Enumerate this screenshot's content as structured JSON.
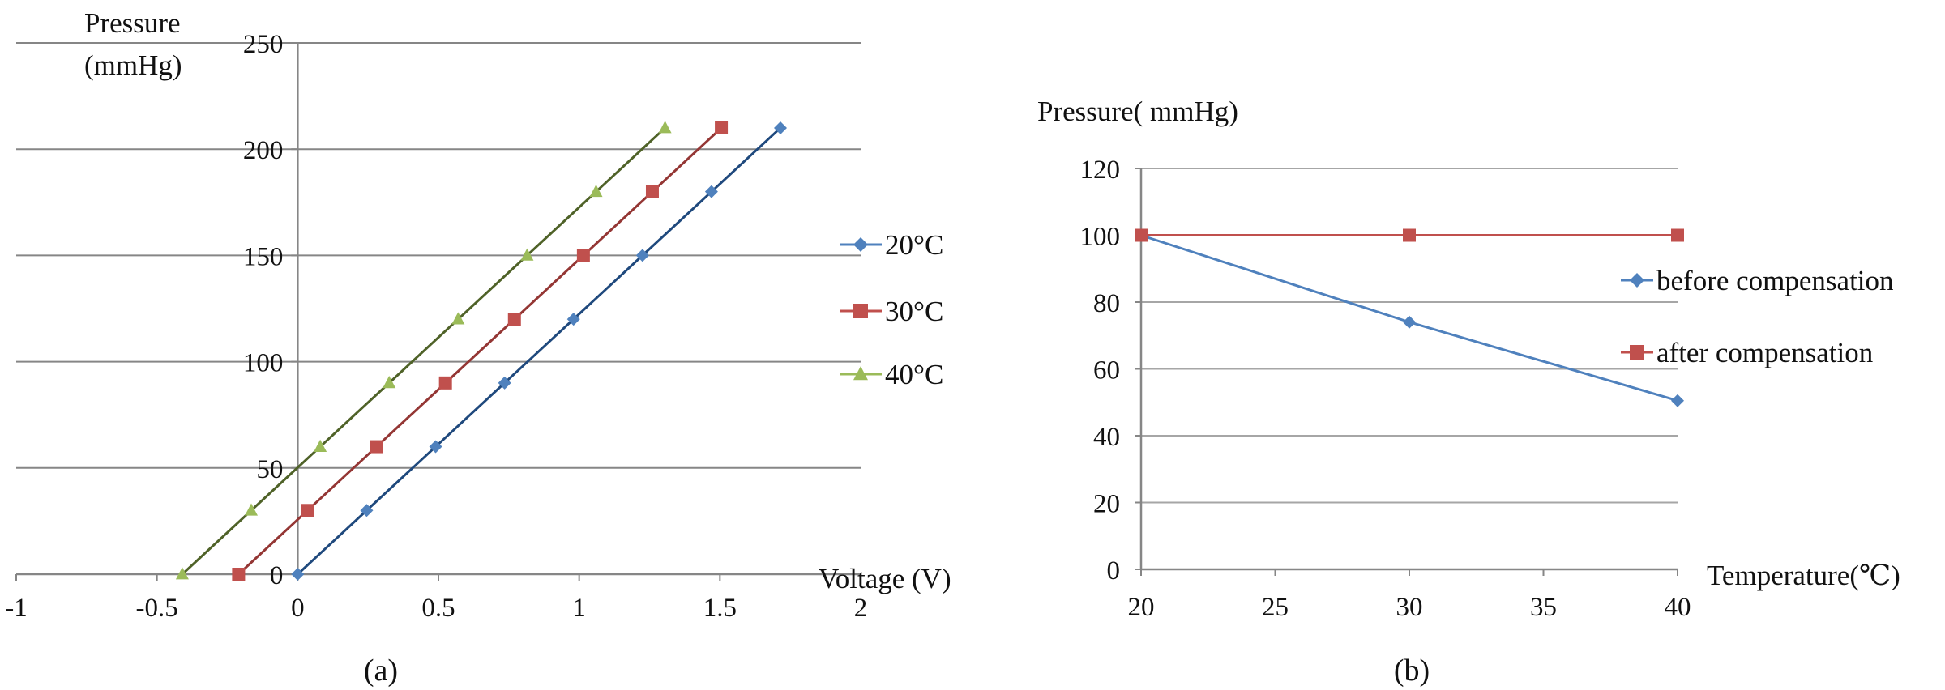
{
  "chart_data": [
    {
      "panel": "(a)",
      "type": "scatter",
      "title": "",
      "xlabel": "Voltage (V)",
      "ylabel_lines": [
        "Pressure",
        "(mmHg)"
      ],
      "xlim": [
        -1,
        2
      ],
      "ylim": [
        0,
        250
      ],
      "xticks": [
        -1,
        -0.5,
        0,
        0.5,
        1,
        1.5,
        2
      ],
      "xtick_labels": [
        "-1",
        "-0.5",
        "0",
        "0.5",
        "1",
        "1.5",
        "2"
      ],
      "yticks": [
        0,
        50,
        100,
        150,
        200,
        250
      ],
      "ytick_labels": [
        "0",
        "50",
        "100",
        "150",
        "200",
        "250"
      ],
      "grid": "horizontal",
      "legend_position": "right",
      "series": [
        {
          "name": "20°C",
          "color": "#4f81bd",
          "line_color": "#1f497d",
          "marker": "diamond",
          "x": [
            0,
            0.245,
            0.49,
            0.735,
            0.98,
            1.225,
            1.47,
            1.715
          ],
          "y": [
            0,
            30,
            60,
            90,
            120,
            150,
            180,
            210
          ]
        },
        {
          "name": "30°C",
          "color": "#c0504d",
          "line_color": "#943634",
          "marker": "square",
          "x": [
            -0.21,
            0.035,
            0.28,
            0.525,
            0.77,
            1.015,
            1.26,
            1.505
          ],
          "y": [
            0,
            30,
            60,
            90,
            120,
            150,
            180,
            210
          ]
        },
        {
          "name": "40°C",
          "color": "#9bbb59",
          "line_color": "#4f6228",
          "marker": "triangle",
          "x": [
            -0.41,
            -0.165,
            0.08,
            0.325,
            0.57,
            0.815,
            1.06,
            1.305
          ],
          "y": [
            0,
            30,
            60,
            90,
            120,
            150,
            180,
            210
          ]
        }
      ]
    },
    {
      "panel": "(b)",
      "type": "line",
      "title": "",
      "xlabel": "Temperature(℃)",
      "ylabel": "Pressure( mmHg)",
      "xlim": [
        20,
        40
      ],
      "ylim": [
        0,
        120
      ],
      "xticks": [
        20,
        25,
        30,
        35,
        40
      ],
      "xtick_labels": [
        "20",
        "25",
        "30",
        "35",
        "40"
      ],
      "yticks": [
        0,
        20,
        40,
        60,
        80,
        100,
        120
      ],
      "ytick_labels": [
        "0",
        "20",
        "40",
        "60",
        "80",
        "100",
        "120"
      ],
      "grid": "horizontal",
      "legend_position": "right",
      "series": [
        {
          "name": "before compensation",
          "color": "#4f81bd",
          "marker": "diamond",
          "x": [
            20,
            30,
            40
          ],
          "y": [
            100,
            74,
            50.5
          ]
        },
        {
          "name": "after compensation",
          "color": "#c0504d",
          "marker": "square",
          "x": [
            20,
            30,
            40
          ],
          "y": [
            100,
            100,
            100
          ]
        }
      ]
    }
  ]
}
